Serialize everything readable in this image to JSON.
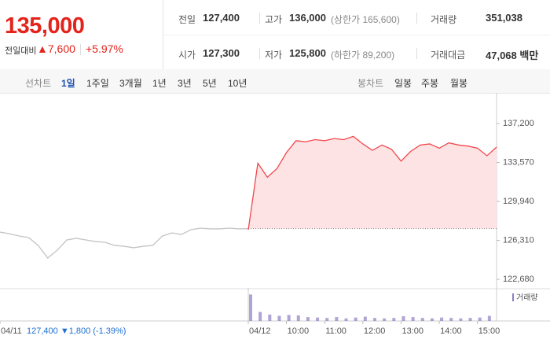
{
  "header": {
    "price": "135,000",
    "change_label": "전일대비",
    "change": "▲7,600",
    "change_pct": "+5.97%",
    "stats": [
      [
        {
          "label": "전일",
          "value": "127,400"
        },
        {
          "label": "고가",
          "value": "136,000",
          "note": "(상한가 165,600)"
        },
        {
          "label": "거래량",
          "value": "351,038"
        }
      ],
      [
        {
          "label": "시가",
          "value": "127,300"
        },
        {
          "label": "저가",
          "value": "125,800",
          "note": "(하한가 89,200)"
        },
        {
          "label": "거래대금",
          "value": "47,068 백만"
        }
      ]
    ]
  },
  "tabs": {
    "line_label": "선차트",
    "line": [
      "1일",
      "1주일",
      "3개월",
      "1년",
      "3년",
      "5년",
      "10년"
    ],
    "candle_label": "봉차트",
    "candle": [
      "일봉",
      "주봉",
      "월봉"
    ]
  },
  "chart_data": {
    "type": "line",
    "annotation": "127,400 ▼1,800 (-1.39%)",
    "baseline": 127400,
    "xlim": [
      0,
      780
    ],
    "xticks": [
      {
        "value": 0,
        "label": "04/11"
      },
      {
        "value": 390,
        "label": "04/12"
      },
      {
        "value": 450,
        "label": "10:00"
      },
      {
        "value": 510,
        "label": "11:00"
      },
      {
        "value": 570,
        "label": "12:00"
      },
      {
        "value": 630,
        "label": "13:00"
      },
      {
        "value": 690,
        "label": "14:00"
      },
      {
        "value": 750,
        "label": "15:00"
      }
    ],
    "ylim": [
      121950,
      138450
    ],
    "yticks": [
      {
        "value": 137200,
        "label": "137,200"
      },
      {
        "value": 133570,
        "label": "133,570"
      },
      {
        "value": 129940,
        "label": "129,940"
      },
      {
        "value": 126310,
        "label": "126,310"
      },
      {
        "value": 122680,
        "label": "122,680"
      }
    ],
    "series": [
      {
        "color": "#c4c4c4",
        "x": [
          0,
          15,
          30,
          45,
          60,
          75,
          90,
          105,
          120,
          135,
          150,
          165,
          180,
          195,
          210,
          225,
          240,
          255,
          270,
          285,
          300,
          315,
          330,
          345,
          360,
          375,
          390
        ],
        "values": [
          127080,
          126930,
          126720,
          126570,
          125840,
          124660,
          125400,
          126350,
          126500,
          126350,
          126200,
          126130,
          125840,
          125760,
          125620,
          125760,
          125840,
          126720,
          127010,
          126860,
          127300,
          127450,
          127380,
          127380,
          127450,
          127380,
          127400
        ]
      },
      {
        "color": "#f0484d",
        "fill": "#fde3e4",
        "x": [
          390,
          405,
          420,
          435,
          450,
          465,
          480,
          495,
          510,
          525,
          540,
          555,
          570,
          585,
          600,
          615,
          630,
          645,
          660,
          675,
          690,
          705,
          720,
          735,
          750,
          765,
          780
        ],
        "values": [
          127300,
          133500,
          132200,
          133000,
          134500,
          135600,
          135500,
          135700,
          135600,
          135800,
          135700,
          136000,
          135300,
          134700,
          135200,
          134800,
          133700,
          134600,
          135200,
          135300,
          134900,
          135400,
          135200,
          135100,
          134900,
          134200,
          135000
        ]
      }
    ],
    "volume": {
      "name": "거래량",
      "color": "#8e7cc3",
      "ylim": [
        0,
        70000
      ],
      "x": [
        390,
        405,
        420,
        435,
        450,
        465,
        480,
        495,
        510,
        525,
        540,
        555,
        570,
        585,
        600,
        615,
        630,
        645,
        660,
        675,
        690,
        705,
        720,
        735,
        750,
        765
      ],
      "values": [
        62000,
        21000,
        15000,
        12000,
        14000,
        13000,
        9000,
        8000,
        7000,
        9000,
        6000,
        8000,
        10000,
        7000,
        6000,
        7000,
        11000,
        9000,
        7000,
        6000,
        8000,
        7000,
        6000,
        7000,
        8000,
        12000
      ]
    }
  }
}
